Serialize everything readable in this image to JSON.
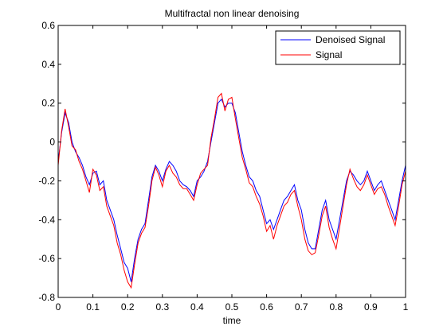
{
  "chart_data": {
    "type": "line",
    "title": "Multifractal non linear denoising",
    "xlabel": "time",
    "ylabel": "",
    "xlim": [
      0,
      1
    ],
    "ylim": [
      -0.8,
      0.6
    ],
    "xticks": [
      0,
      0.1,
      0.2,
      0.3,
      0.4,
      0.5,
      0.6,
      0.7,
      0.8,
      0.9,
      1
    ],
    "xtick_labels": [
      "0",
      "0.1",
      "0.2",
      "0.3",
      "0.4",
      "0.5",
      "0.6",
      "0.7",
      "0.8",
      "0.9",
      "1"
    ],
    "yticks": [
      -0.8,
      -0.6,
      -0.4,
      -0.2,
      0,
      0.2,
      0.4,
      0.6
    ],
    "ytick_labels": [
      "-0.8",
      "-0.6",
      "-0.4",
      "-0.2",
      "0",
      "0.2",
      "0.4",
      "0.6"
    ],
    "grid": false,
    "legend_position": "top-right",
    "x": [
      0.0,
      0.01,
      0.02,
      0.03,
      0.04,
      0.05,
      0.06,
      0.07,
      0.08,
      0.09,
      0.1,
      0.11,
      0.12,
      0.13,
      0.14,
      0.15,
      0.16,
      0.17,
      0.18,
      0.19,
      0.2,
      0.21,
      0.22,
      0.23,
      0.24,
      0.25,
      0.26,
      0.27,
      0.28,
      0.29,
      0.3,
      0.31,
      0.32,
      0.33,
      0.34,
      0.35,
      0.36,
      0.37,
      0.38,
      0.39,
      0.4,
      0.41,
      0.42,
      0.43,
      0.44,
      0.45,
      0.46,
      0.47,
      0.48,
      0.49,
      0.5,
      0.51,
      0.52,
      0.53,
      0.54,
      0.55,
      0.56,
      0.57,
      0.58,
      0.59,
      0.6,
      0.61,
      0.62,
      0.63,
      0.64,
      0.65,
      0.66,
      0.67,
      0.68,
      0.69,
      0.7,
      0.71,
      0.72,
      0.73,
      0.74,
      0.75,
      0.76,
      0.77,
      0.78,
      0.79,
      0.8,
      0.81,
      0.82,
      0.83,
      0.84,
      0.85,
      0.86,
      0.87,
      0.88,
      0.89,
      0.9,
      0.91,
      0.92,
      0.93,
      0.94,
      0.95,
      0.96,
      0.97,
      0.98,
      0.99,
      1.0
    ],
    "series": [
      {
        "name": "Denoised Signal",
        "color": "#0000ff",
        "values": [
          -0.1,
          0.05,
          0.15,
          0.1,
          0.0,
          -0.05,
          -0.08,
          -0.12,
          -0.18,
          -0.22,
          -0.16,
          -0.15,
          -0.22,
          -0.2,
          -0.3,
          -0.35,
          -0.4,
          -0.48,
          -0.55,
          -0.62,
          -0.65,
          -0.72,
          -0.6,
          -0.5,
          -0.45,
          -0.42,
          -0.3,
          -0.18,
          -0.12,
          -0.15,
          -0.2,
          -0.14,
          -0.1,
          -0.12,
          -0.15,
          -0.2,
          -0.22,
          -0.23,
          -0.25,
          -0.28,
          -0.2,
          -0.18,
          -0.15,
          -0.1,
          0.0,
          0.1,
          0.2,
          0.22,
          0.18,
          0.2,
          0.2,
          0.15,
          0.05,
          -0.05,
          -0.12,
          -0.18,
          -0.2,
          -0.25,
          -0.28,
          -0.35,
          -0.42,
          -0.4,
          -0.45,
          -0.4,
          -0.35,
          -0.3,
          -0.28,
          -0.25,
          -0.22,
          -0.3,
          -0.35,
          -0.45,
          -0.52,
          -0.55,
          -0.55,
          -0.45,
          -0.35,
          -0.3,
          -0.4,
          -0.45,
          -0.5,
          -0.4,
          -0.3,
          -0.2,
          -0.15,
          -0.17,
          -0.2,
          -0.22,
          -0.2,
          -0.15,
          -0.2,
          -0.25,
          -0.22,
          -0.2,
          -0.25,
          -0.3,
          -0.35,
          -0.4,
          -0.3,
          -0.2,
          -0.12
        ]
      },
      {
        "name": "Signal",
        "color": "#ff0000",
        "values": [
          -0.12,
          0.06,
          0.17,
          0.08,
          -0.02,
          -0.04,
          -0.1,
          -0.14,
          -0.2,
          -0.26,
          -0.14,
          -0.17,
          -0.25,
          -0.23,
          -0.33,
          -0.38,
          -0.43,
          -0.52,
          -0.58,
          -0.66,
          -0.72,
          -0.75,
          -0.63,
          -0.52,
          -0.47,
          -0.44,
          -0.33,
          -0.2,
          -0.13,
          -0.17,
          -0.23,
          -0.15,
          -0.12,
          -0.16,
          -0.18,
          -0.22,
          -0.24,
          -0.24,
          -0.27,
          -0.3,
          -0.22,
          -0.16,
          -0.14,
          -0.12,
          0.02,
          0.12,
          0.23,
          0.25,
          0.16,
          0.22,
          0.23,
          0.12,
          0.02,
          -0.08,
          -0.14,
          -0.21,
          -0.23,
          -0.28,
          -0.32,
          -0.38,
          -0.46,
          -0.43,
          -0.5,
          -0.43,
          -0.38,
          -0.33,
          -0.31,
          -0.27,
          -0.25,
          -0.33,
          -0.4,
          -0.5,
          -0.56,
          -0.58,
          -0.57,
          -0.48,
          -0.38,
          -0.33,
          -0.44,
          -0.5,
          -0.55,
          -0.44,
          -0.33,
          -0.22,
          -0.14,
          -0.19,
          -0.23,
          -0.25,
          -0.22,
          -0.17,
          -0.22,
          -0.27,
          -0.24,
          -0.23,
          -0.27,
          -0.33,
          -0.38,
          -0.43,
          -0.33,
          -0.22,
          -0.15
        ]
      }
    ]
  }
}
